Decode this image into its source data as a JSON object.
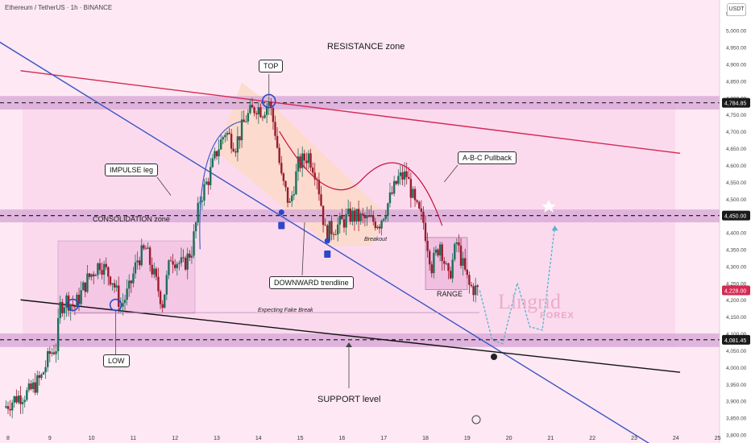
{
  "header": {
    "title": "Ethereum / TetherUS · 1h · BINANCE",
    "currency": "USDT"
  },
  "annotations": {
    "resistance_zone": "RESISTANCE zone",
    "support_level": "SUPPORT level",
    "consolidation_zone": "CONSOLIDATION zone",
    "top": "TOP",
    "low": "LOW",
    "impulse_leg": "IMPULSE leg",
    "abc_pullback": "A-B-C Pullback",
    "downward_trendline": "DOWNWARD trendline",
    "range": "RANGE",
    "breakout": "Breakout",
    "expecting_fake_break": "Expecting Fake Break"
  },
  "brand": {
    "name": "Lingrid",
    "sub": "FOREX"
  },
  "colors": {
    "background": "#fde8f3",
    "zone_fill": "#d6a6d6",
    "up_candle": "#1b6f5a",
    "down_candle": "#9b1b2e",
    "resistance_line": "#d42a52",
    "trendline": "#3a55c4",
    "support_line": "#111111",
    "projection": "#4fb6c9",
    "price_tag": "#d42a52"
  },
  "chart_data": {
    "type": "candlestick",
    "title": "Ethereum / TetherUS · 1h · BINANCE",
    "y_range": [
      3775,
      5090
    ],
    "y_ticks": [
      5050,
      5000,
      4950,
      4900,
      4850,
      4800,
      4750,
      4700,
      4650,
      4600,
      4550,
      4500,
      4450,
      4400,
      4350,
      4300,
      4250,
      4200,
      4150,
      4100,
      4050,
      4000,
      3950,
      3900,
      3850,
      3800
    ],
    "x_ticks": [
      "8",
      "9",
      "10",
      "11",
      "12",
      "13",
      "14",
      "15",
      "16",
      "17",
      "18",
      "19",
      "20",
      "21",
      "22",
      "23",
      "24",
      "25"
    ],
    "price_labels": [
      {
        "value": 4784.85,
        "label": "4,784.85",
        "style": "dark"
      },
      {
        "value": 4450.0,
        "label": "4,450.00",
        "style": "dark"
      },
      {
        "value": 4228.0,
        "label": "4,228.00",
        "style": "red"
      },
      {
        "value": 4081.45,
        "label": "4,081.45",
        "style": "dark"
      }
    ],
    "zones": [
      {
        "name": "resistance",
        "low": 4765,
        "high": 4805
      },
      {
        "name": "mid",
        "low": 4430,
        "high": 4468
      },
      {
        "name": "support",
        "low": 4060,
        "high": 4100
      }
    ],
    "price_path": [
      [
        7.9,
        3880
      ],
      [
        8.2,
        3910
      ],
      [
        8.5,
        3925
      ],
      [
        8.8,
        3970
      ],
      [
        9.0,
        4040
      ],
      [
        9.15,
        4060
      ],
      [
        9.25,
        4180
      ],
      [
        9.4,
        4200
      ],
      [
        9.6,
        4180
      ],
      [
        9.9,
        4260
      ],
      [
        10.2,
        4310
      ],
      [
        10.5,
        4260
      ],
      [
        10.7,
        4180
      ],
      [
        10.9,
        4230
      ],
      [
        11.1,
        4320
      ],
      [
        11.3,
        4350
      ],
      [
        11.5,
        4270
      ],
      [
        11.7,
        4190
      ],
      [
        11.9,
        4330
      ],
      [
        12.2,
        4300
      ],
      [
        12.4,
        4350
      ],
      [
        12.6,
        4500
      ],
      [
        12.8,
        4560
      ],
      [
        13.0,
        4640
      ],
      [
        13.2,
        4700
      ],
      [
        13.45,
        4660
      ],
      [
        13.7,
        4740
      ],
      [
        13.95,
        4775
      ],
      [
        14.1,
        4760
      ],
      [
        14.25,
        4790
      ],
      [
        14.4,
        4700
      ],
      [
        14.55,
        4560
      ],
      [
        14.75,
        4480
      ],
      [
        14.95,
        4600
      ],
      [
        15.2,
        4630
      ],
      [
        15.4,
        4570
      ],
      [
        15.6,
        4400
      ],
      [
        15.9,
        4420
      ],
      [
        16.2,
        4450
      ],
      [
        16.5,
        4440
      ],
      [
        16.9,
        4430
      ],
      [
        17.15,
        4500
      ],
      [
        17.35,
        4560
      ],
      [
        17.55,
        4570
      ],
      [
        17.75,
        4480
      ],
      [
        17.95,
        4430
      ],
      [
        18.15,
        4300
      ],
      [
        18.35,
        4370
      ],
      [
        18.55,
        4260
      ],
      [
        18.75,
        4370
      ],
      [
        18.9,
        4300
      ],
      [
        19.05,
        4240
      ],
      [
        19.25,
        4228
      ]
    ],
    "projection_path": [
      [
        19.3,
        4228
      ],
      [
        19.6,
        4080
      ],
      [
        19.85,
        4070
      ],
      [
        20.2,
        4250
      ],
      [
        20.5,
        4120
      ],
      [
        20.8,
        4110
      ],
      [
        21.1,
        4420
      ]
    ],
    "lines": [
      {
        "name": "resistance line",
        "from": [
          8.3,
          4880
        ],
        "to": [
          24.1,
          4635
        ]
      },
      {
        "name": "downward trendline",
        "from": [
          7.8,
          4965
        ],
        "to": [
          23.8,
          3740
        ]
      },
      {
        "name": "support line",
        "from": [
          8.3,
          4200
        ],
        "to": [
          24.1,
          3985
        ]
      }
    ],
    "markers": {
      "top": [
        14.25,
        4790
      ],
      "low_points": [
        [
          9.55,
          4185
        ],
        [
          10.58,
          4185
        ]
      ],
      "trend_touches": [
        [
          14.55,
          4460
        ],
        [
          15.65,
          4375
        ]
      ]
    }
  }
}
